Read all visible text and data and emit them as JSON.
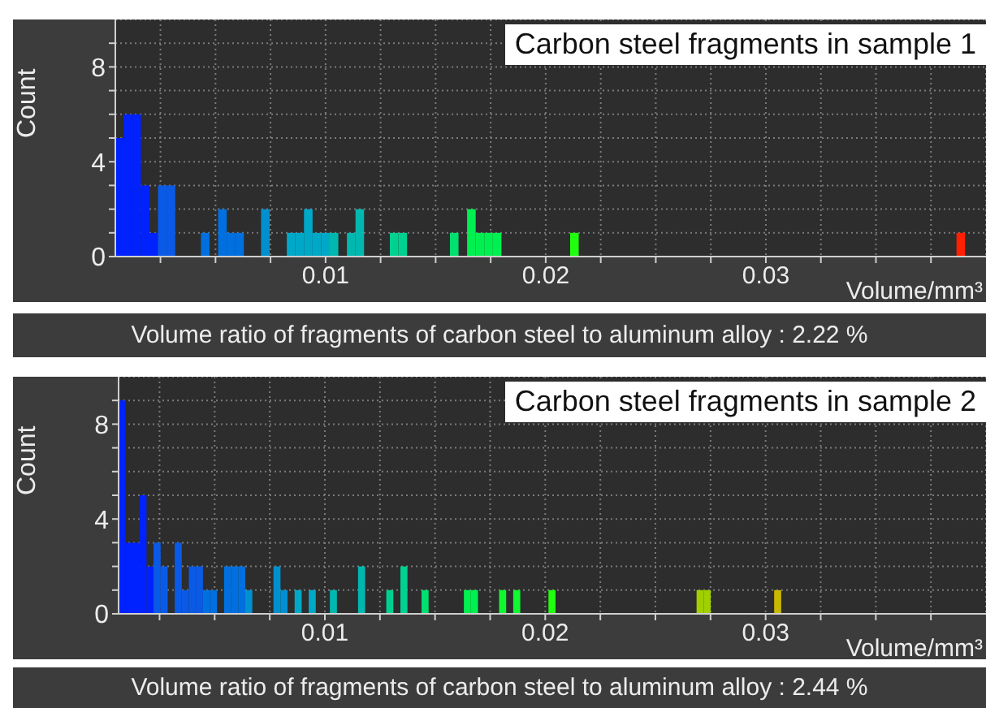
{
  "chart_data": [
    {
      "type": "histogram",
      "title": "Carbon steel fragments in sample 1",
      "xlabel": "Volume/mm³",
      "ylabel": "Count",
      "annotations": [
        "Volume ratio of fragments of carbon steel to aluminum alloy : 2.22 %"
      ],
      "bins": [
        0.00045,
        0.00084,
        0.00123,
        0.00162,
        0.00201,
        0.0024,
        0.00279,
        0.00318,
        0.00357,
        0.00396,
        0.00435,
        0.00474,
        0.00513,
        0.00552,
        0.00591,
        0.0063,
        0.00669,
        0.00708,
        0.00747,
        0.00786,
        0.00825,
        0.00864,
        0.00903,
        0.00942,
        0.00981,
        0.0102,
        0.01059,
        0.01098,
        0.01137,
        0.01176,
        0.01215,
        0.01254,
        0.01293,
        0.01332,
        0.01371,
        0.0141,
        0.01449,
        0.01488,
        0.01527,
        0.01566,
        0.01605,
        0.01644,
        0.01683,
        0.01722,
        0.01761,
        0.018,
        0.01839,
        0.01878,
        0.01917,
        0.01956,
        0.01995,
        0.02034,
        0.02073,
        0.02112,
        0.02151,
        0.0219,
        0.02229,
        0.02268,
        0.02307,
        0.02346,
        0.02385,
        0.02424,
        0.02463,
        0.02502,
        0.02541,
        0.0258,
        0.02619,
        0.02658,
        0.02697,
        0.02736,
        0.02775,
        0.02814,
        0.02853,
        0.02892,
        0.02931,
        0.0297,
        0.03009,
        0.03048,
        0.03087,
        0.03126,
        0.03165,
        0.03204,
        0.03243,
        0.03282,
        0.03321,
        0.0336,
        0.03399,
        0.03438,
        0.03477,
        0.03516,
        0.03555,
        0.03594,
        0.03633,
        0.03672,
        0.03711,
        0.0375,
        0.03789,
        0.03828,
        0.03867,
        0.03906,
        0.03945
      ],
      "values": [
        5,
        6,
        6,
        3,
        1,
        3,
        3,
        0,
        0,
        0,
        1,
        0,
        2,
        1,
        1,
        0,
        0,
        2,
        0,
        0,
        1,
        1,
        2,
        1,
        1,
        1,
        0,
        1,
        2,
        0,
        0,
        0,
        1,
        1,
        0,
        0,
        0,
        0,
        0,
        1,
        0,
        2,
        1,
        1,
        1,
        0,
        0,
        0,
        0,
        0,
        0,
        0,
        0,
        1,
        0,
        0,
        0,
        0,
        0,
        0,
        0,
        0,
        0,
        0,
        0,
        0,
        0,
        0,
        0,
        0,
        0,
        0,
        0,
        0,
        0,
        0,
        0,
        0,
        0,
        0,
        0,
        0,
        0,
        0,
        0,
        0,
        0,
        0,
        0,
        0,
        0,
        0,
        0,
        0,
        0,
        0,
        0,
        0,
        1,
        0
      ],
      "colors": [
        "#0022ff",
        "#0022ff",
        "#0022ff",
        "#0022ff",
        "#0022ff",
        "#0a5ae8",
        "#0a5ae8",
        "#0a5ae8",
        "#0a5ae8",
        "#0a5ae8",
        "#0070e0",
        "#0070e0",
        "#0070e0",
        "#0070e0",
        "#0070e0",
        "#0090d0",
        "#0090d0",
        "#0090d0",
        "#0090d0",
        "#0090d0",
        "#00a8c8",
        "#00a8c8",
        "#00a8c8",
        "#00a8c8",
        "#00a8c8",
        "#00b8b0",
        "#00b8b0",
        "#00b8b0",
        "#00b8b0",
        "#00b8b0",
        "#00d090",
        "#00d090",
        "#00d090",
        "#00d090",
        "#00d090",
        "#00e070",
        "#00e070",
        "#00e070",
        "#00e070",
        "#00e070",
        "#00f050",
        "#00f050",
        "#00f050",
        "#00f050",
        "#00f050",
        "#10f830",
        "#10f830",
        "#10f830",
        "#10f830",
        "#10f830",
        "#20ff10",
        "#20ff10",
        "#20ff10",
        "#20ff10",
        "#20ff10",
        "#50f000",
        "#50f000",
        "#50f000",
        "#50f000",
        "#50f000",
        "#80e000",
        "#80e000",
        "#80e000",
        "#80e000",
        "#80e000",
        "#a0d000",
        "#a0d000",
        "#a0d000",
        "#a0d000",
        "#a0d000",
        "#b8c800",
        "#b8c800",
        "#b8c800",
        "#b8c800",
        "#b8c800",
        "#c8b800",
        "#c8b800",
        "#c8b800",
        "#c8b800",
        "#c8b800",
        "#e09800",
        "#e09800",
        "#e09800",
        "#e09800",
        "#e09800",
        "#f07000",
        "#f07000",
        "#f07000",
        "#f07000",
        "#f07000",
        "#f84800",
        "#f84800",
        "#f84800",
        "#f84800",
        "#f84800",
        "#ff2000",
        "#ff2000",
        "#ff2000",
        "#ff2000",
        "#ff2000"
      ],
      "xlim": [
        0.00045,
        0.04
      ],
      "ylim": [
        0,
        10
      ],
      "xticks": [
        {
          "value": 0.0025,
          "label": null
        },
        {
          "value": 0.005,
          "label": null
        },
        {
          "value": 0.0075,
          "label": null
        },
        0.01,
        {
          "value": 0.0125,
          "label": null
        },
        {
          "value": 0.015,
          "label": null
        },
        {
          "value": 0.0175,
          "label": null
        },
        0.02,
        {
          "value": 0.0225,
          "label": null
        },
        {
          "value": 0.025,
          "label": null
        },
        {
          "value": 0.0275,
          "label": null
        },
        0.03,
        {
          "value": 0.0325,
          "label": null
        },
        {
          "value": 0.035,
          "label": null
        },
        {
          "value": 0.0375,
          "label": null
        }
      ],
      "yticks": [
        0,
        {
          "value": 1,
          "label": null
        },
        {
          "value": 2,
          "label": null
        },
        {
          "value": 3,
          "label": null
        },
        4,
        {
          "value": 5,
          "label": null
        },
        {
          "value": 6,
          "label": null
        },
        {
          "value": 7,
          "label": null
        },
        8,
        {
          "value": 9,
          "label": null
        }
      ],
      "grid": true
    },
    {
      "type": "histogram",
      "title": "Carbon steel fragments in sample 2",
      "xlabel": "Volume/mm³",
      "ylabel": "Count",
      "annotations": [
        "Volume ratio of fragments of carbon steel to aluminum alloy : 2.44 %"
      ],
      "bins": [
        0.00064,
        0.00096,
        0.00128,
        0.0016,
        0.00192,
        0.00224,
        0.00256,
        0.00288,
        0.0032,
        0.00352,
        0.00384,
        0.00416,
        0.00448,
        0.0048,
        0.00512,
        0.00544,
        0.00576,
        0.00608,
        0.0064,
        0.00672,
        0.00704,
        0.00736,
        0.00768,
        0.008,
        0.00832,
        0.00864,
        0.00896,
        0.00928,
        0.0096,
        0.00992,
        0.01024,
        0.01056,
        0.01088,
        0.0112,
        0.01152,
        0.01184,
        0.01216,
        0.01248,
        0.0128,
        0.01312,
        0.01344,
        0.01376,
        0.01408,
        0.0144,
        0.01472,
        0.01504,
        0.01536,
        0.01568,
        0.016,
        0.01632,
        0.01664,
        0.01696,
        0.01728,
        0.0176,
        0.01792,
        0.01824,
        0.01856,
        0.01888,
        0.0192,
        0.01952,
        0.01984,
        0.02016,
        0.02048,
        0.0208,
        0.02112,
        0.02144,
        0.02176,
        0.02208,
        0.0224,
        0.02272,
        0.02304,
        0.02336,
        0.02368,
        0.024,
        0.02432,
        0.02464,
        0.02496,
        0.02528,
        0.0256,
        0.02592,
        0.02624,
        0.02656,
        0.02688,
        0.0272,
        0.02752,
        0.02784,
        0.02816,
        0.02848,
        0.0288,
        0.02912,
        0.02944,
        0.02976,
        0.03008,
        0.0304,
        0.03072,
        0.03104,
        0.03136,
        0.03168,
        0.032,
        0.03232,
        0.03264
      ],
      "values": [
        9,
        3,
        3,
        5,
        2,
        3,
        2,
        0,
        3,
        1,
        2,
        2,
        1,
        1,
        0,
        2,
        2,
        2,
        1,
        0,
        0,
        0,
        2,
        1,
        0,
        1,
        0,
        1,
        0,
        0,
        1,
        0,
        0,
        0,
        2,
        0,
        0,
        0,
        1,
        0,
        2,
        0,
        0,
        1,
        0,
        0,
        0,
        0,
        0,
        1,
        1,
        0,
        0,
        0,
        1,
        0,
        1,
        0,
        0,
        0,
        0,
        1,
        0,
        0,
        0,
        0,
        0,
        0,
        0,
        0,
        0,
        0,
        0,
        0,
        0,
        0,
        0,
        0,
        0,
        0,
        0,
        0,
        1,
        1,
        0,
        0,
        0,
        0,
        0,
        0,
        0,
        0,
        0,
        1,
        0,
        0,
        0,
        0,
        0,
        0
      ],
      "colors": [
        "#0022ff",
        "#0022ff",
        "#0022ff",
        "#0022ff",
        "#0022ff",
        "#0a5ae8",
        "#0a5ae8",
        "#0a5ae8",
        "#0a5ae8",
        "#0a5ae8",
        "#0a5ae8",
        "#0a5ae8",
        "#0070e0",
        "#0070e0",
        "#0070e0",
        "#0070e0",
        "#0070e0",
        "#0070e0",
        "#0090d0",
        "#0090d0",
        "#0090d0",
        "#0090d0",
        "#0090d0",
        "#0090d0",
        "#00a8c8",
        "#00a8c8",
        "#00a8c8",
        "#00a8c8",
        "#00a8c8",
        "#00a8c8",
        "#00b8b0",
        "#00b8b0",
        "#00b8b0",
        "#00b8b0",
        "#00b8b0",
        "#00b8b0",
        "#00d090",
        "#00d090",
        "#00d090",
        "#00d090",
        "#00d090",
        "#00d090",
        "#00e070",
        "#00e070",
        "#00e070",
        "#00e070",
        "#00e070",
        "#00e070",
        "#00f050",
        "#00f050",
        "#00f050",
        "#00f050",
        "#00f050",
        "#00f050",
        "#10f830",
        "#10f830",
        "#10f830",
        "#10f830",
        "#10f830",
        "#10f830",
        "#20ff10",
        "#20ff10",
        "#20ff10",
        "#20ff10",
        "#20ff10",
        "#20ff10",
        "#50f000",
        "#50f000",
        "#50f000",
        "#50f000",
        "#50f000",
        "#50f000",
        "#50f000",
        "#80e000",
        "#80e000",
        "#80e000",
        "#80e000",
        "#80e000",
        "#80e000",
        "#a0d000",
        "#a0d000",
        "#a0d000",
        "#a0d000",
        "#a0d000",
        "#a0d000",
        "#b8c800",
        "#b8c800",
        "#b8c800",
        "#b8c800",
        "#b8c800",
        "#b8c800",
        "#c8b800",
        "#c8b800",
        "#c8b800",
        "#c8b800",
        "#c8b800",
        "#c8b800",
        "#e09800",
        "#e09800",
        "#e09800"
      ],
      "xlim": [
        0.00064,
        0.04
      ],
      "ylim": [
        0,
        10
      ],
      "xticks": [
        {
          "value": 0.0025,
          "label": null
        },
        {
          "value": 0.005,
          "label": null
        },
        {
          "value": 0.0075,
          "label": null
        },
        0.01,
        {
          "value": 0.0125,
          "label": null
        },
        {
          "value": 0.015,
          "label": null
        },
        {
          "value": 0.0175,
          "label": null
        },
        0.02,
        {
          "value": 0.0225,
          "label": null
        },
        {
          "value": 0.025,
          "label": null
        },
        {
          "value": 0.0275,
          "label": null
        },
        0.03,
        {
          "value": 0.0325,
          "label": null
        },
        {
          "value": 0.035,
          "label": null
        },
        {
          "value": 0.0375,
          "label": null
        }
      ],
      "yticks": [
        0,
        {
          "value": 1,
          "label": null
        },
        {
          "value": 2,
          "label": null
        },
        {
          "value": 3,
          "label": null
        },
        4,
        {
          "value": 5,
          "label": null
        },
        {
          "value": 6,
          "label": null
        },
        {
          "value": 7,
          "label": null
        },
        8,
        {
          "value": 9,
          "label": null
        }
      ],
      "grid": true
    }
  ]
}
